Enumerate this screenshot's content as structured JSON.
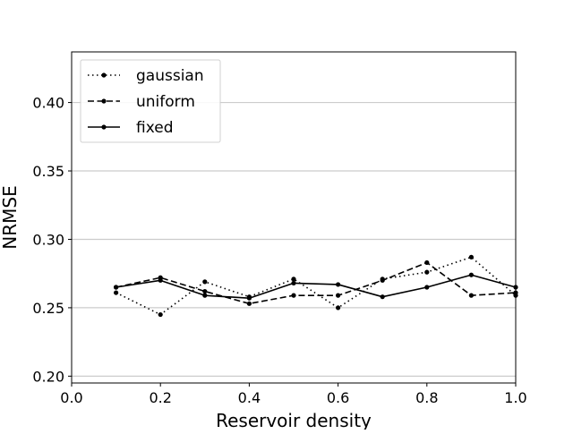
{
  "chart_data": {
    "type": "line",
    "xlabel": "Reservoir density",
    "ylabel": "NRMSE",
    "xlim": [
      0.0,
      1.0
    ],
    "ylim": [
      0.195,
      0.437
    ],
    "xticks": [
      0.0,
      0.2,
      0.4,
      0.6,
      0.8,
      1.0
    ],
    "xtick_labels": [
      "0.0",
      "0.2",
      "0.4",
      "0.6",
      "0.8",
      "1.0"
    ],
    "yticks": [
      0.2,
      0.25,
      0.3,
      0.35,
      0.4
    ],
    "ytick_labels": [
      "0.20",
      "0.25",
      "0.30",
      "0.35",
      "0.40"
    ],
    "grid": "horizontal",
    "legend_position": "top-left",
    "x": [
      0.1,
      0.2,
      0.3,
      0.4,
      0.5,
      0.6,
      0.7,
      0.8,
      0.9,
      1.0
    ],
    "series": [
      {
        "name": "gaussian",
        "style": "dotted",
        "color": "#000000",
        "values": [
          0.261,
          0.245,
          0.269,
          0.258,
          0.271,
          0.25,
          0.271,
          0.276,
          0.287,
          0.259
        ]
      },
      {
        "name": "uniform",
        "style": "dashed",
        "color": "#000000",
        "values": [
          0.265,
          0.272,
          0.262,
          0.253,
          0.259,
          0.259,
          0.27,
          0.283,
          0.259,
          0.261
        ]
      },
      {
        "name": "fixed",
        "style": "solid",
        "color": "#000000",
        "values": [
          0.265,
          0.27,
          0.259,
          0.257,
          0.268,
          0.267,
          0.258,
          0.265,
          0.274,
          0.265
        ]
      }
    ]
  }
}
